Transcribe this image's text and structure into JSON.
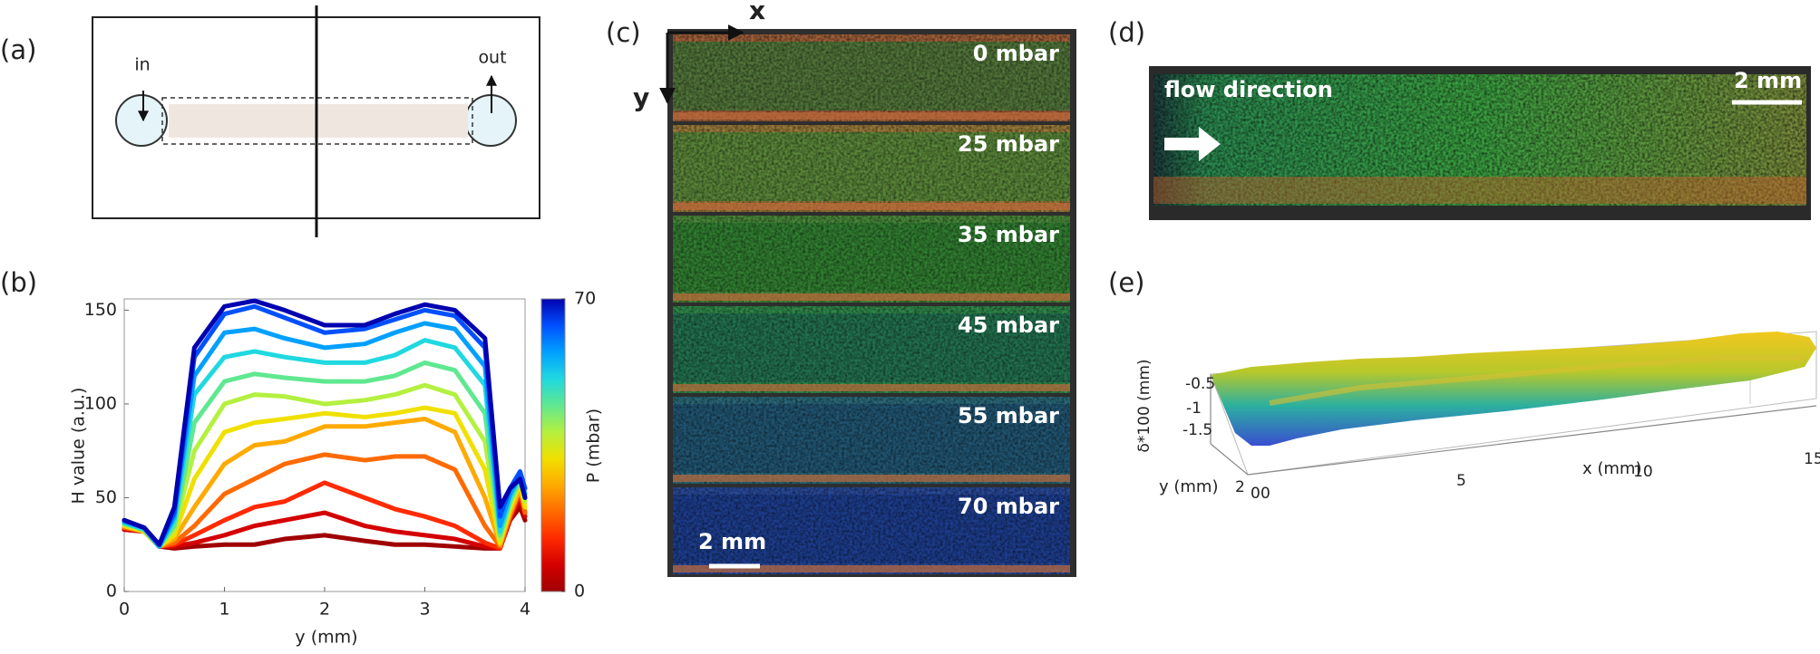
{
  "panel_labels": [
    "(a)",
    "(b)",
    "(c)",
    "(d)",
    "(e)"
  ],
  "panel_a": {
    "inlet": "in",
    "outlet": "out"
  },
  "chart_data": {
    "type": "line",
    "xlabel": "y (mm)",
    "ylabel": "H value (a.u.)",
    "x": [
      0,
      0.2,
      0.35,
      0.5,
      0.7,
      1.0,
      1.3,
      1.6,
      2.0,
      2.4,
      2.7,
      3.0,
      3.3,
      3.6,
      3.75,
      3.85,
      3.95,
      4.0
    ],
    "series": [
      {
        "color": "#a00000",
        "values": [
          33,
          32,
          24,
          23,
          24,
          25,
          25,
          28,
          30,
          27,
          25,
          25,
          24,
          23,
          23,
          38,
          45,
          38
        ]
      },
      {
        "color": "#d40000",
        "values": [
          33,
          32,
          24,
          24,
          26,
          30,
          35,
          38,
          42,
          35,
          32,
          30,
          28,
          24,
          23,
          38,
          50,
          40
        ]
      },
      {
        "color": "#ff2a00",
        "values": [
          34,
          32,
          24,
          25,
          30,
          38,
          45,
          48,
          58,
          50,
          44,
          40,
          35,
          26,
          23,
          40,
          52,
          42
        ]
      },
      {
        "color": "#ff6a00",
        "values": [
          34,
          32,
          24,
          26,
          35,
          52,
          60,
          68,
          73,
          70,
          72,
          72,
          65,
          35,
          24,
          40,
          55,
          42
        ]
      },
      {
        "color": "#ffaa00",
        "values": [
          35,
          32,
          24,
          28,
          45,
          68,
          78,
          80,
          88,
          88,
          90,
          92,
          85,
          50,
          25,
          42,
          55,
          45
        ]
      },
      {
        "color": "#f0e000",
        "values": [
          35,
          32,
          24,
          30,
          60,
          85,
          90,
          92,
          95,
          93,
          95,
          98,
          95,
          65,
          26,
          44,
          58,
          45
        ]
      },
      {
        "color": "#b4f040",
        "values": [
          36,
          33,
          24,
          33,
          75,
          100,
          105,
          104,
          100,
          102,
          105,
          110,
          105,
          80,
          28,
          46,
          60,
          48
        ]
      },
      {
        "color": "#60e890",
        "values": [
          36,
          33,
          24,
          35,
          90,
          112,
          116,
          114,
          112,
          112,
          115,
          122,
          118,
          95,
          30,
          48,
          60,
          50
        ]
      },
      {
        "color": "#20d8e0",
        "values": [
          37,
          33,
          24,
          38,
          105,
          125,
          128,
          125,
          122,
          122,
          126,
          134,
          130,
          110,
          32,
          50,
          62,
          50
        ]
      },
      {
        "color": "#00a0ff",
        "values": [
          37,
          34,
          24,
          40,
          115,
          138,
          140,
          135,
          130,
          132,
          138,
          143,
          140,
          120,
          35,
          52,
          62,
          52
        ]
      },
      {
        "color": "#0050ff",
        "values": [
          38,
          34,
          25,
          42,
          125,
          148,
          152,
          146,
          138,
          140,
          145,
          150,
          147,
          130,
          40,
          55,
          64,
          55
        ]
      },
      {
        "color": "#0000b0",
        "values": [
          38,
          34,
          25,
          45,
          130,
          152,
          155,
          150,
          142,
          142,
          148,
          153,
          150,
          135,
          45,
          55,
          60,
          50
        ]
      }
    ],
    "xlim": [
      0,
      4
    ],
    "ylim": [
      0,
      156
    ],
    "xticks": [
      0,
      1,
      2,
      3,
      4
    ],
    "yticks": [
      0,
      50,
      100,
      150
    ],
    "colorbar": {
      "label": "P (mbar)",
      "lim": [
        0,
        70
      ],
      "ticks": [
        0,
        70
      ]
    }
  },
  "panel_c": {
    "axis_x": "x",
    "axis_y": "y",
    "pressures": [
      "0 mbar",
      "25 mbar",
      "35 mbar",
      "45 mbar",
      "55 mbar",
      "70 mbar"
    ],
    "scale_bar": "2 mm"
  },
  "panel_d": {
    "annotation": "flow direction",
    "scale_bar": "2 mm"
  },
  "panel_e": {
    "zlabel": "δ*100 (mm)",
    "zticks": [
      -0.5,
      -1,
      -1.5
    ],
    "xlabel": "x (mm)",
    "xticks": [
      0,
      5,
      10,
      15
    ],
    "ylabel": "y (mm)",
    "yticks": [
      2,
      0
    ]
  }
}
